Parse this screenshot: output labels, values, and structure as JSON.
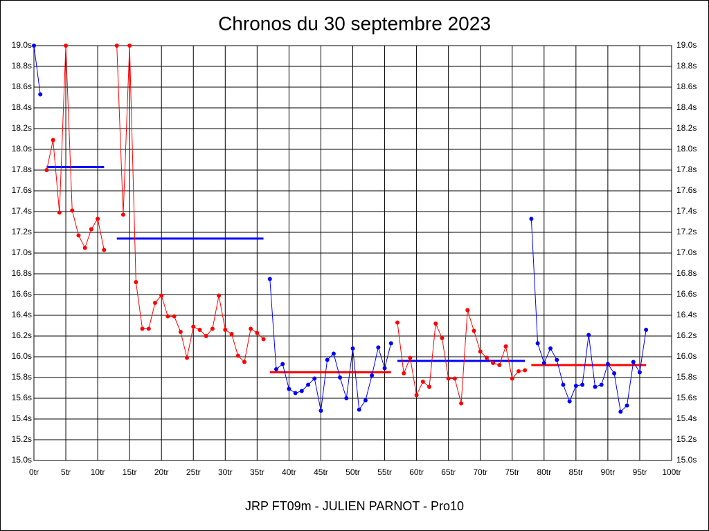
{
  "chart_data": {
    "type": "line",
    "title": "Chronos du 30 septembre 2023",
    "subtitle": "JRP FT09m - JULIEN PARNOT - Pro10",
    "xlim": [
      0,
      100
    ],
    "ylim": [
      15.0,
      19.0
    ],
    "grid": true,
    "xticks": [
      {
        "value": 0,
        "label": "0tr"
      },
      {
        "value": 5,
        "label": "5tr"
      },
      {
        "value": 10,
        "label": "10tr"
      },
      {
        "value": 15,
        "label": "15tr"
      },
      {
        "value": 20,
        "label": "20tr"
      },
      {
        "value": 25,
        "label": "25tr"
      },
      {
        "value": 30,
        "label": "30tr"
      },
      {
        "value": 35,
        "label": "35tr"
      },
      {
        "value": 40,
        "label": "40tr"
      },
      {
        "value": 45,
        "label": "45tr"
      },
      {
        "value": 50,
        "label": "50tr"
      },
      {
        "value": 55,
        "label": "55tr"
      },
      {
        "value": 60,
        "label": "60tr"
      },
      {
        "value": 65,
        "label": "65tr"
      },
      {
        "value": 70,
        "label": "70tr"
      },
      {
        "value": 75,
        "label": "75tr"
      },
      {
        "value": 80,
        "label": "80tr"
      },
      {
        "value": 85,
        "label": "85tr"
      },
      {
        "value": 90,
        "label": "90tr"
      },
      {
        "value": 95,
        "label": "95tr"
      },
      {
        "value": 100,
        "label": "100tr"
      }
    ],
    "yticks": [
      {
        "value": 15.0,
        "label": "15.0s"
      },
      {
        "value": 15.2,
        "label": "15.2s"
      },
      {
        "value": 15.4,
        "label": "15.4s"
      },
      {
        "value": 15.6,
        "label": "15.6s"
      },
      {
        "value": 15.8,
        "label": "15.8s"
      },
      {
        "value": 16.0,
        "label": "16.0s"
      },
      {
        "value": 16.2,
        "label": "16.2s"
      },
      {
        "value": 16.4,
        "label": "16.4s"
      },
      {
        "value": 16.6,
        "label": "16.6s"
      },
      {
        "value": 16.8,
        "label": "16.8s"
      },
      {
        "value": 17.0,
        "label": "17.0s"
      },
      {
        "value": 17.2,
        "label": "17.2s"
      },
      {
        "value": 17.4,
        "label": "17.4s"
      },
      {
        "value": 17.6,
        "label": "17.6s"
      },
      {
        "value": 17.8,
        "label": "17.8s"
      },
      {
        "value": 18.0,
        "label": "18.0s"
      },
      {
        "value": 18.2,
        "label": "18.2s"
      },
      {
        "value": 18.4,
        "label": "18.4s"
      },
      {
        "value": 18.6,
        "label": "18.6s"
      },
      {
        "value": 18.8,
        "label": "18.8s"
      },
      {
        "value": 19.0,
        "label": "19.0s"
      }
    ],
    "series": [
      {
        "color": "#0000ff",
        "x": [
          0,
          1
        ],
        "values": [
          19.0,
          18.53
        ]
      },
      {
        "color": "#ff0000",
        "x": [
          2,
          3,
          4,
          5,
          6,
          7,
          8,
          9,
          10,
          11
        ],
        "values": [
          17.8,
          18.09,
          17.39,
          19.0,
          17.41,
          17.17,
          17.05,
          17.23,
          17.33,
          17.03
        ]
      },
      {
        "color": "#ff0000",
        "x": [
          13,
          14,
          15,
          16,
          17,
          18,
          19,
          20,
          21,
          22,
          23,
          24,
          25,
          26,
          27,
          28,
          29,
          30,
          31,
          32,
          33,
          34,
          35,
          36
        ],
        "values": [
          19.0,
          17.37,
          19.0,
          16.72,
          16.27,
          16.27,
          16.52,
          16.59,
          16.39,
          16.39,
          16.24,
          15.99,
          16.29,
          16.26,
          16.2,
          16.27,
          16.59,
          16.26,
          16.22,
          16.01,
          15.95,
          16.27,
          16.23,
          16.17
        ]
      },
      {
        "color": "#0000ff",
        "x": [
          37,
          38,
          39,
          40,
          41,
          42,
          43,
          44,
          45,
          46,
          47,
          48,
          49,
          50,
          51,
          52,
          53,
          54,
          55,
          56
        ],
        "values": [
          16.75,
          15.88,
          15.93,
          15.69,
          15.65,
          15.67,
          15.73,
          15.79,
          15.48,
          15.97,
          16.03,
          15.8,
          15.6,
          16.08,
          15.49,
          15.58,
          15.82,
          16.09,
          15.89,
          16.13
        ]
      },
      {
        "color": "#ff0000",
        "x": [
          57,
          58,
          59,
          60,
          61,
          62,
          63,
          64,
          65,
          66,
          67,
          68,
          69,
          70,
          71,
          72,
          73,
          74,
          75,
          76,
          77
        ],
        "values": [
          16.33,
          15.84,
          15.99,
          15.63,
          15.76,
          15.71,
          16.32,
          16.18,
          15.79,
          15.79,
          15.55,
          16.45,
          16.25,
          16.05,
          15.99,
          15.94,
          15.92,
          16.1,
          15.79,
          15.86,
          15.87
        ]
      },
      {
        "color": "#0000ff",
        "x": [
          78,
          79,
          80,
          81,
          82,
          83,
          84,
          85,
          86,
          87,
          88,
          89,
          90,
          91,
          92,
          93,
          94,
          95,
          96
        ],
        "values": [
          17.33,
          16.13,
          15.94,
          16.08,
          15.97,
          15.73,
          15.57,
          15.72,
          15.73,
          16.21,
          15.71,
          15.73,
          15.93,
          15.84,
          15.47,
          15.53,
          15.95,
          15.85,
          16.26
        ]
      }
    ],
    "averages": [
      {
        "color": "#0000ff",
        "x": [
          2,
          11
        ],
        "value": 17.83
      },
      {
        "color": "#0000ff",
        "x": [
          13,
          36
        ],
        "value": 17.14
      },
      {
        "color": "#ff0000",
        "x": [
          37,
          56
        ],
        "value": 15.85
      },
      {
        "color": "#0000ff",
        "x": [
          57,
          77
        ],
        "value": 15.96
      },
      {
        "color": "#ff0000",
        "x": [
          78,
          96
        ],
        "value": 15.92
      }
    ]
  }
}
